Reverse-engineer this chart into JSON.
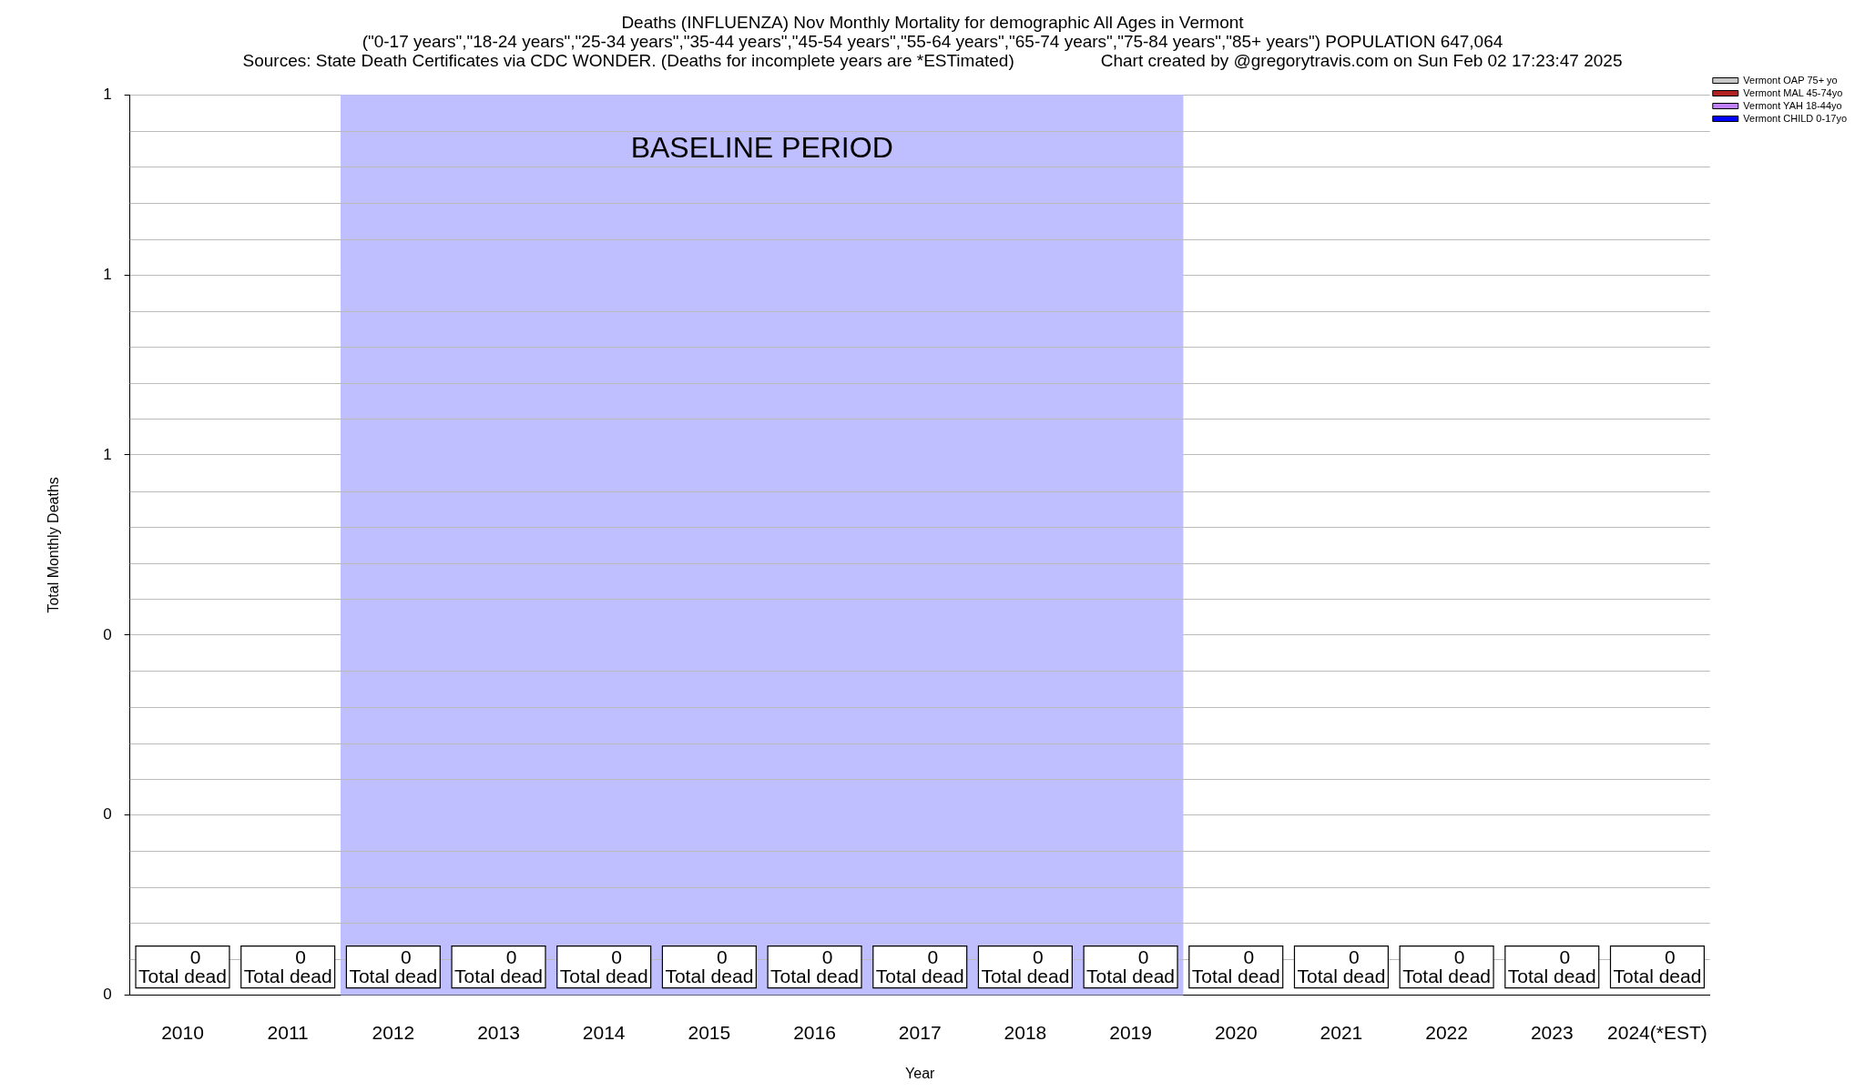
{
  "chart_data": {
    "type": "bar",
    "title": "Deaths (INFLUENZA) Nov Monthly Mortality for demographic All Ages in Vermont",
    "subtitle": "(\"0-17 years\",\"18-24 years\",\"25-34 years\",\"35-44 years\",\"45-54 years\",\"55-64 years\",\"65-74 years\",\"75-84 years\",\"85+ years\") POPULATION 647,064",
    "annotations": [
      "Sources: State Death Certificates via CDC WONDER. (Deaths for incomplete years are *ESTimated)",
      "Chart created by @gregorytravis.com on Sun Feb 02 17:23:47 2025"
    ],
    "xlabel": "Year",
    "ylabel": "Total Monthly Deaths",
    "categories": [
      "2010",
      "2011",
      "2012",
      "2013",
      "2014",
      "2015",
      "2016",
      "2017",
      "2018",
      "2019",
      "2020",
      "2021",
      "2022",
      "2023",
      "2024(*EST)"
    ],
    "series": [
      {
        "name": "Vermont OAP 75+ yo",
        "color": "#c8c8c8",
        "values": [
          0,
          0,
          0,
          0,
          0,
          0,
          0,
          0,
          0,
          0,
          0,
          0,
          0,
          0,
          0
        ]
      },
      {
        "name": "Vermont MAL 45-74yo",
        "color": "#b22222",
        "values": [
          0,
          0,
          0,
          0,
          0,
          0,
          0,
          0,
          0,
          0,
          0,
          0,
          0,
          0,
          0
        ]
      },
      {
        "name": "Vermont YAH 18-44yo",
        "color": "#c080ff",
        "values": [
          0,
          0,
          0,
          0,
          0,
          0,
          0,
          0,
          0,
          0,
          0,
          0,
          0,
          0,
          0
        ]
      },
      {
        "name": "Vermont CHILD 0-17yo",
        "color": "#0000ff",
        "values": [
          0,
          0,
          0,
          0,
          0,
          0,
          0,
          0,
          0,
          0,
          0,
          0,
          0,
          0,
          0
        ]
      }
    ],
    "ylim": [
      0,
      1
    ],
    "yticks": [
      {
        "value": 0,
        "label": "0"
      },
      {
        "value": 0.2,
        "label": "0"
      },
      {
        "value": 0.4,
        "label": "0"
      },
      {
        "value": 0.6,
        "label": "1"
      },
      {
        "value": 0.8,
        "label": "1"
      },
      {
        "value": 1,
        "label": "1"
      }
    ],
    "grid": "y",
    "legend": "top right",
    "bands": [
      {
        "axis": "x",
        "from": "2012",
        "to": "2019",
        "label": "BASELINE PERIOD",
        "color": "#bfbfff"
      }
    ],
    "totals": [
      "0\nTotal dead",
      "0\nTotal dead",
      "0\nTotal dead",
      "0\nTotal dead",
      "0\nTotal dead",
      "0\nTotal dead",
      "0\nTotal dead",
      "0\nTotal dead",
      "0\nTotal dead",
      "0\nTotal dead",
      "0\nTotal dead",
      "0\nTotal dead",
      "0\nTotal dead",
      "0\nTotal dead",
      "0\nTotal dead"
    ]
  }
}
